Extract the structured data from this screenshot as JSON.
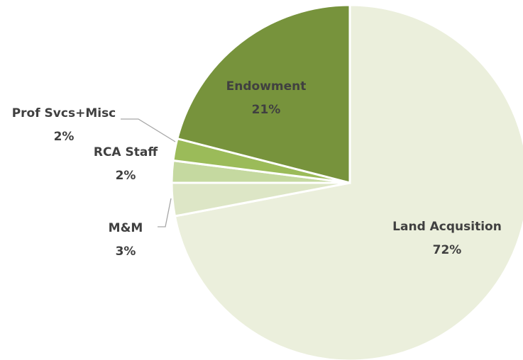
{
  "chart_data": {
    "type": "pie",
    "categories": [
      "Land Acqusition",
      "M&M",
      "RCA Staff",
      "Prof Svcs+Misc",
      "Endowment"
    ],
    "values": [
      72,
      3,
      2,
      2,
      21
    ],
    "value_labels": [
      "72%",
      "3%",
      "2%",
      "2%",
      "21%"
    ],
    "colors": [
      "#ebefdc",
      "#dde6c6",
      "#c5d9a0",
      "#9bbb59",
      "#77933c"
    ]
  }
}
